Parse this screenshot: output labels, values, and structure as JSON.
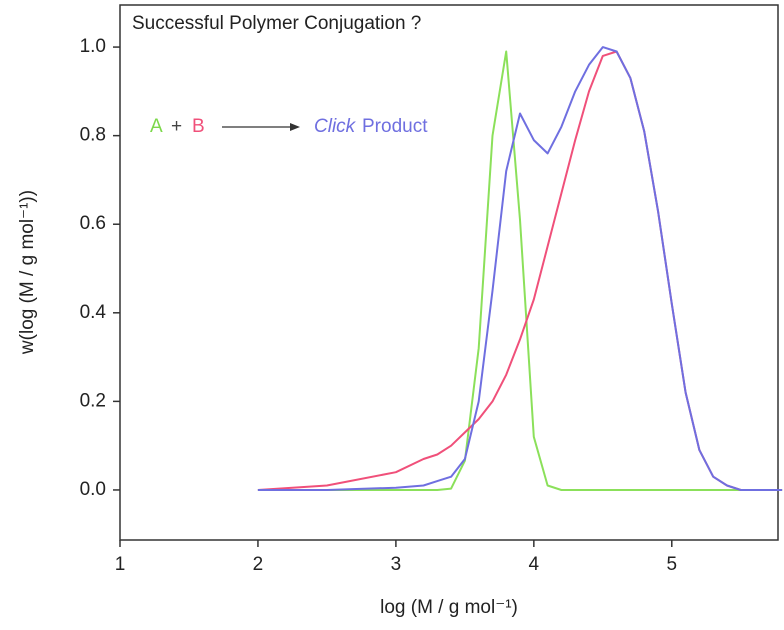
{
  "chart_data": {
    "type": "line",
    "title": "Successful Polymer Conjugation ?",
    "x_label": "log (M / g mol⁻¹)",
    "y_label": "w(log (M / g mol⁻¹))",
    "annotation": {
      "reactant_a": "A",
      "plus": "+",
      "reactant_b": "B",
      "product_em": "Click",
      "product": "Product"
    },
    "x": [
      2.0,
      2.5,
      3.0,
      3.2,
      3.3,
      3.4,
      3.5,
      3.6,
      3.7,
      3.8,
      3.9,
      4.0,
      4.1,
      4.2,
      4.3,
      4.4,
      4.5,
      4.6,
      4.7,
      4.8,
      4.9,
      5.0,
      5.1,
      5.2,
      5.3,
      5.4,
      5.5,
      5.8
    ],
    "series": [
      {
        "color": "#8be05a",
        "values": [
          0,
          0,
          0,
          0,
          0,
          0.003,
          0.066,
          0.32,
          0.8,
          0.99,
          0.61,
          0.12,
          0.01,
          0,
          0,
          0,
          0,
          0,
          0,
          0,
          0,
          0,
          0,
          0,
          0,
          0,
          0,
          0
        ]
      },
      {
        "color": "#f0507a",
        "values": [
          0,
          0.01,
          0.04,
          0.07,
          0.08,
          0.1,
          0.13,
          0.16,
          0.2,
          0.26,
          0.34,
          0.43,
          0.55,
          0.67,
          0.79,
          0.9,
          0.98,
          0.99,
          0.93,
          0.81,
          0.63,
          0.42,
          0.22,
          0.09,
          0.03,
          0.01,
          0,
          0
        ]
      },
      {
        "color": "#6f6fe0",
        "values": [
          0,
          0,
          0.005,
          0.01,
          0.02,
          0.03,
          0.07,
          0.2,
          0.45,
          0.72,
          0.85,
          0.79,
          0.76,
          0.82,
          0.9,
          0.96,
          1.0,
          0.99,
          0.93,
          0.81,
          0.63,
          0.42,
          0.22,
          0.09,
          0.03,
          0.01,
          0,
          0
        ]
      }
    ],
    "xlim": [
      1,
      5.77
    ],
    "ylim": [
      -0.113,
      1.095
    ],
    "xticks": [
      1,
      2,
      3,
      4,
      5
    ],
    "yticks": [
      {
        "value": 0,
        "label": "0.0"
      },
      0.2,
      0.4,
      0.6,
      0.8,
      {
        "value": 1,
        "label": "1.0"
      }
    ]
  }
}
